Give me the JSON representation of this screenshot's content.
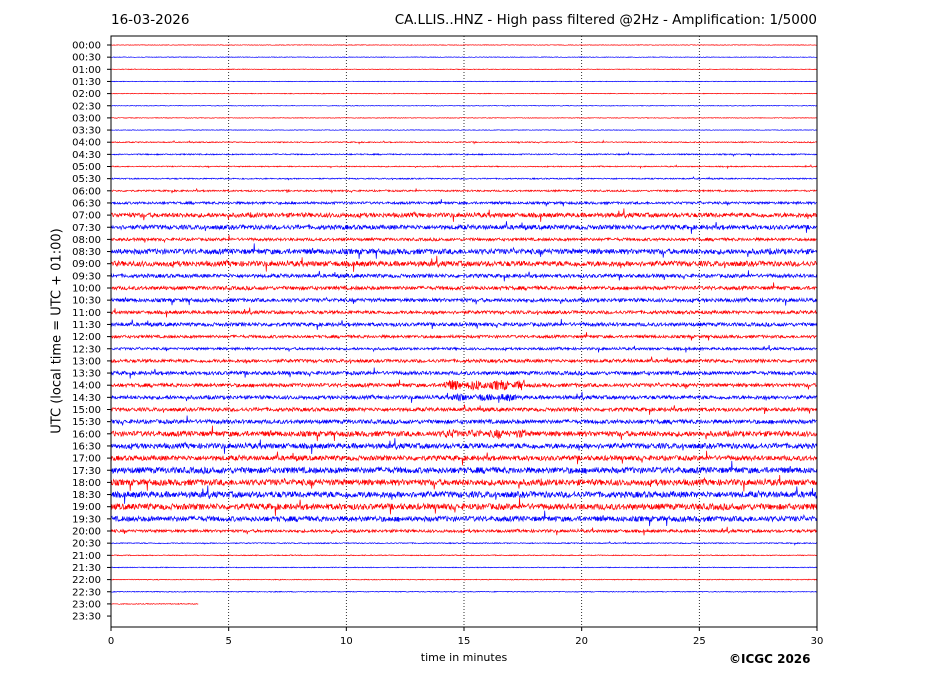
{
  "header": {
    "date": "16-03-2026",
    "title": "CA.LLIS..HNZ - High pass filtered @2Hz - Amplification: 1/5000"
  },
  "credit": "©ICGC 2026",
  "colors": {
    "red": "#ff0000",
    "blue": "#0000ff",
    "grid": "#000000"
  },
  "chart_data": {
    "type": "line",
    "xlabel": "time in minutes",
    "ylabel": "UTC (local time = UTC + 01:00)",
    "xlim": [
      0,
      30
    ],
    "xticks": [
      "0",
      "5",
      "10",
      "15",
      "20",
      "25",
      "30"
    ],
    "grid": "vertical dotted at x ticks",
    "rows": [
      "00:00",
      "00:30",
      "01:00",
      "01:30",
      "02:00",
      "02:30",
      "03:00",
      "03:30",
      "04:00",
      "04:30",
      "05:00",
      "05:30",
      "06:00",
      "06:30",
      "07:00",
      "07:30",
      "08:00",
      "08:30",
      "09:00",
      "09:30",
      "10:00",
      "10:30",
      "11:00",
      "11:30",
      "12:00",
      "12:30",
      "13:00",
      "13:30",
      "14:00",
      "14:30",
      "15:00",
      "15:30",
      "16:00",
      "16:30",
      "17:00",
      "17:30",
      "18:00",
      "18:30",
      "19:00",
      "19:30",
      "20:00",
      "20:30",
      "21:00",
      "21:30",
      "22:00",
      "22:30",
      "23:00",
      "23:30"
    ],
    "row_colors": "alternating red (even rows) / blue (odd rows)",
    "row_noise_level": [
      0.3,
      0.3,
      0.3,
      0.3,
      0.3,
      0.3,
      0.3,
      0.3,
      0.5,
      0.6,
      0.5,
      0.6,
      0.8,
      1.2,
      2.2,
      2.2,
      1.4,
      2.6,
      2.6,
      1.8,
      1.8,
      1.8,
      1.6,
      1.8,
      1.4,
      1.2,
      1.6,
      1.8,
      1.8,
      1.8,
      1.8,
      2.0,
      2.6,
      2.6,
      2.4,
      3.0,
      3.0,
      3.0,
      3.0,
      2.6,
      1.4,
      0.5,
      0.4,
      0.4,
      0.4,
      0.4,
      0.4,
      0.3
    ],
    "last_trace_end_minute": 3.7,
    "bursts": [
      {
        "row": "14:00",
        "start": 14.0,
        "end": 17.6,
        "amplitude": 5.5
      },
      {
        "row": "14:30",
        "start": 14.3,
        "end": 17.5,
        "amplitude": 4.0
      },
      {
        "row": "16:00",
        "start": 13.9,
        "end": 17.6,
        "amplitude": 4.5
      },
      {
        "row": "08:30",
        "start": 26.4,
        "end": 30.0,
        "amplitude": 1.4
      },
      {
        "row": "13:00",
        "start": 28.5,
        "end": 30.0,
        "amplitude": 1.6
      },
      {
        "row": "07:30",
        "start": 15.4,
        "end": 17.3,
        "amplitude": 1.3
      }
    ]
  }
}
